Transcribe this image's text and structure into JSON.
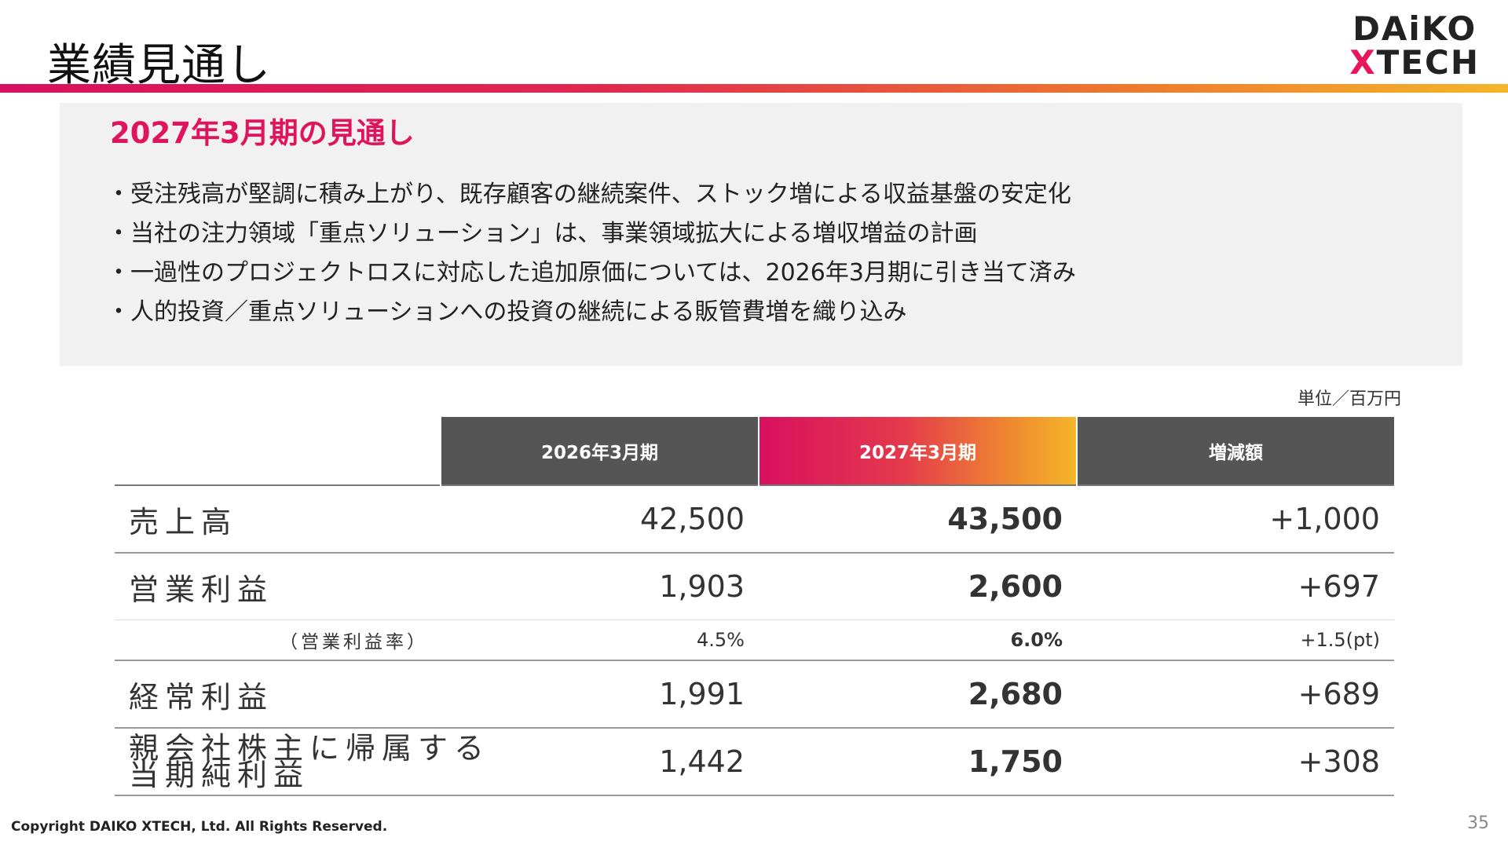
{
  "header": {
    "title": "業績見通し",
    "logo_line1": "DAiKO",
    "logo_x": "X",
    "logo_line2_rest": "TECH"
  },
  "outlook": {
    "heading": "2027年3月期の見通し",
    "bullets": [
      "・受注残高が堅調に積み上がり、既存顧客の継続案件、ストック増による収益基盤の安定化",
      "・当社の注力領域「重点ソリューション」は、事業領域拡大による増収増益の計画",
      "・一過性のプロジェクトロスに対応した追加原価については、2026年3月期に引き当て済み",
      "・人的投資／重点ソリューションへの投資の継続による販管費増を織り込み"
    ]
  },
  "table": {
    "unit": "単位／百万円",
    "headers": [
      "2026年3月期",
      "2027年3月期",
      "増減額"
    ],
    "rows": [
      {
        "label": "売上高",
        "prev": "42,500",
        "curr": "43,500",
        "diff": "+1,000"
      },
      {
        "label": "営業利益",
        "prev": "1,903",
        "curr": "2,600",
        "diff": "+697"
      },
      {
        "label": "（営業利益率）",
        "prev": "4.5%",
        "curr": "6.0%",
        "diff": "+1.5(pt)"
      },
      {
        "label": "経常利益",
        "prev": "1,991",
        "curr": "2,680",
        "diff": "+689"
      },
      {
        "label_line1": "親会社株主に帰属する",
        "label_line2": "当期純利益",
        "prev": "1,442",
        "curr": "1,750",
        "diff": "+308"
      }
    ]
  },
  "footer": {
    "copyright": "Copyright DAIKO XTECH, Ltd. All Rights Reserved.",
    "page_number": "35"
  },
  "colors": {
    "accent": "#e0145c",
    "header_gray": "#555555",
    "panel_bg": "#f1f1f1"
  }
}
